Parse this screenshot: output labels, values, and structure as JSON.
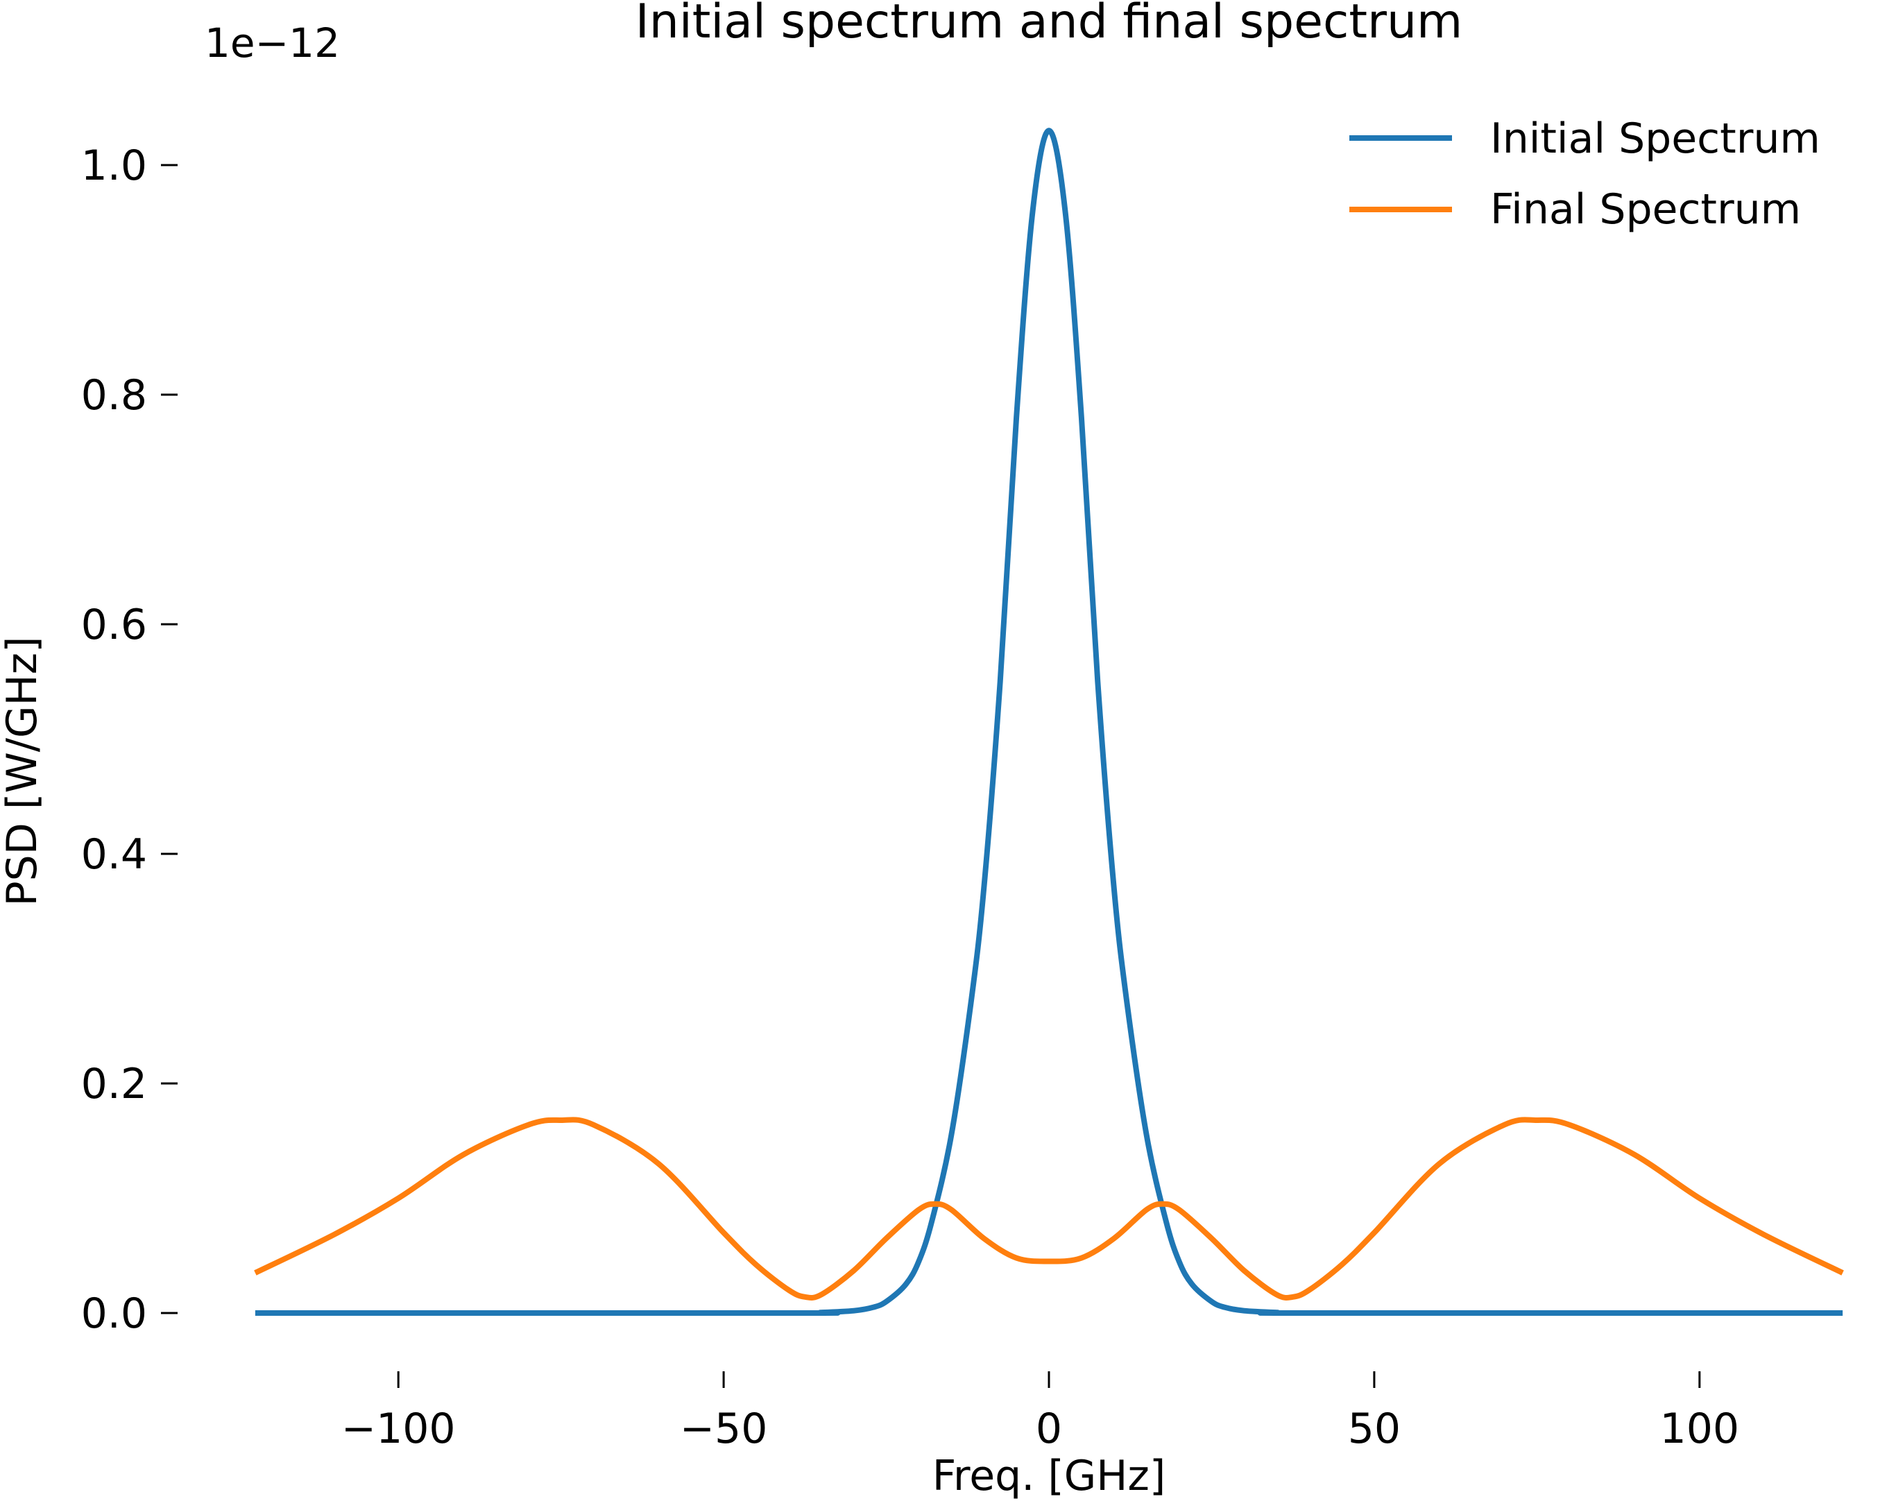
{
  "chart_data": {
    "type": "line",
    "title": "Initial spectrum and final spectrum",
    "xlabel": "Freq. [GHz]",
    "ylabel": "PSD [W/GHz]",
    "y_offset_label": "1e−12",
    "xlim": [
      -122,
      122
    ],
    "ylim": [
      0,
      1.03
    ],
    "xticks": [
      -100,
      -50,
      0,
      50,
      100
    ],
    "xtick_labels": [
      "−100",
      "−50",
      "0",
      "50",
      "100"
    ],
    "yticks": [
      0.0,
      0.2,
      0.4,
      0.6,
      0.8,
      1.0
    ],
    "ytick_labels": [
      "0.0",
      "0.2",
      "0.4",
      "0.6",
      "0.8",
      "1.0"
    ],
    "grid": false,
    "legend_position": "top-right",
    "series": [
      {
        "name": "Initial Spectrum",
        "color": "#1f77b4",
        "x": [
          -122,
          -40,
          -35,
          -30,
          -27,
          -25,
          -22,
          -20,
          -18,
          -15,
          -12,
          -10,
          -7.5,
          -5,
          -2.5,
          0,
          2.5,
          5,
          7.5,
          10,
          12,
          15,
          18,
          20,
          22,
          25,
          27,
          30,
          35,
          40,
          122
        ],
        "y": [
          0.0,
          0.0,
          0.0005,
          0.002,
          0.005,
          0.01,
          0.025,
          0.045,
          0.08,
          0.155,
          0.27,
          0.37,
          0.55,
          0.78,
          0.96,
          1.03,
          0.96,
          0.78,
          0.55,
          0.37,
          0.27,
          0.155,
          0.08,
          0.045,
          0.025,
          0.01,
          0.005,
          0.002,
          0.0005,
          0.0,
          0.0
        ]
      },
      {
        "name": "Final Spectrum",
        "color": "#ff7f0e",
        "x": [
          -122,
          -110,
          -100,
          -90,
          -80,
          -75,
          -70,
          -60,
          -50,
          -45,
          -40,
          -37.5,
          -35,
          -30,
          -25,
          -20,
          -17.5,
          -15,
          -10,
          -5,
          0,
          5,
          10,
          15,
          17.5,
          20,
          25,
          30,
          35,
          37.5,
          40,
          45,
          50,
          60,
          70,
          75,
          80,
          90,
          100,
          110,
          122
        ],
        "y": [
          0.035,
          0.068,
          0.1,
          0.138,
          0.164,
          0.168,
          0.164,
          0.13,
          0.07,
          0.042,
          0.02,
          0.014,
          0.016,
          0.037,
          0.065,
          0.09,
          0.095,
          0.09,
          0.065,
          0.048,
          0.045,
          0.048,
          0.065,
          0.09,
          0.095,
          0.09,
          0.065,
          0.037,
          0.016,
          0.014,
          0.02,
          0.042,
          0.07,
          0.13,
          0.164,
          0.168,
          0.164,
          0.138,
          0.1,
          0.068,
          0.035
        ]
      }
    ]
  }
}
